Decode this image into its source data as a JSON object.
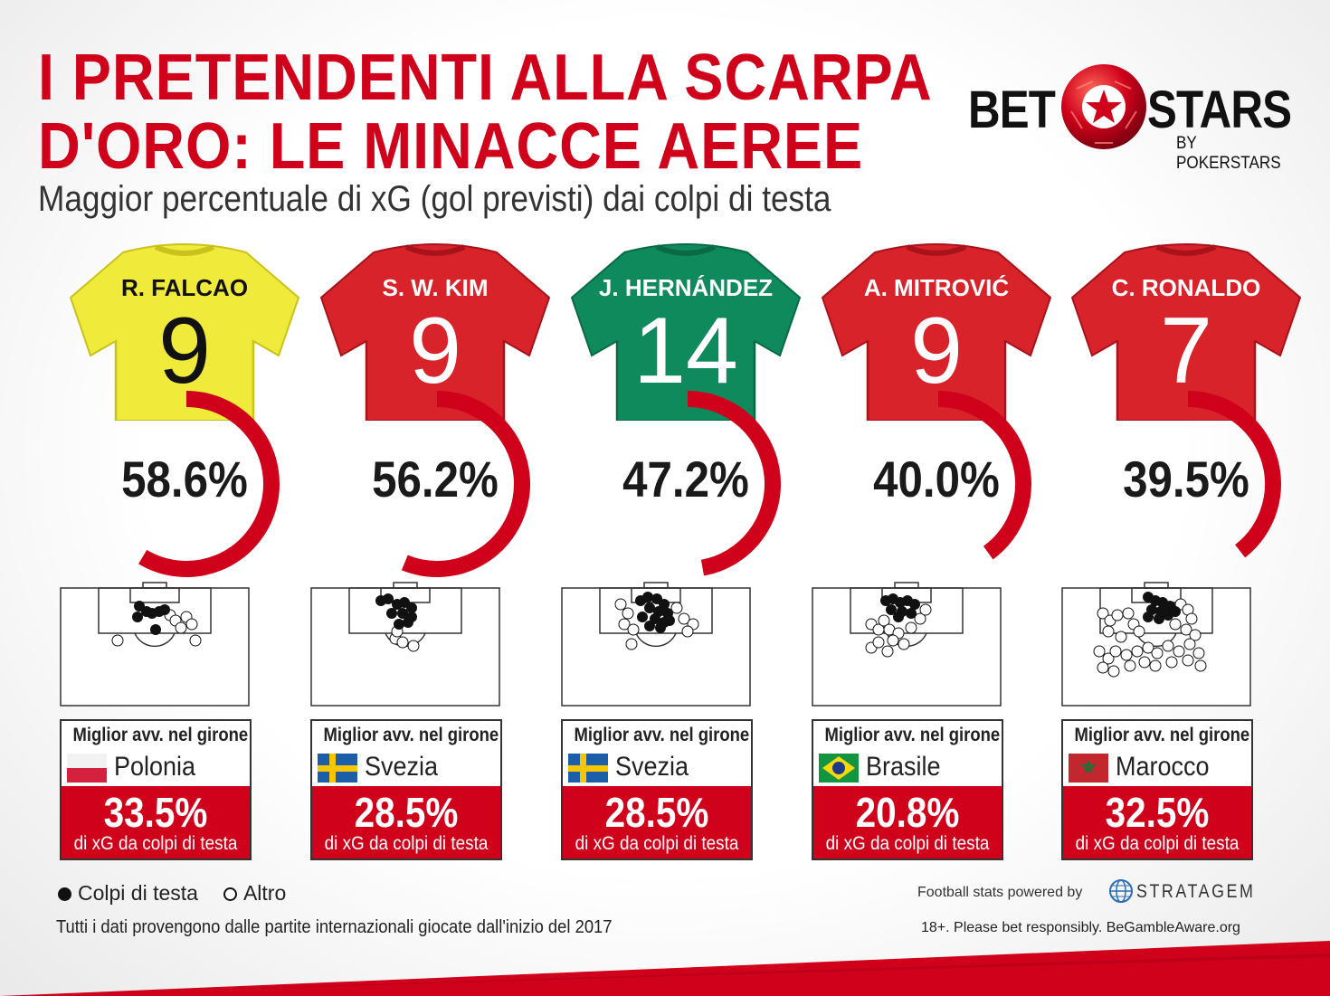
{
  "title_line1": "I PRETENDENTI ALLA SCARPA",
  "title_line2": "D'ORO: LE MINACCE AEREE",
  "subtitle": "Maggior percentuale di xG (gol previsti) dai colpi di testa",
  "logo": {
    "left": "BET",
    "right": "STARS",
    "sub": "BY POKERSTARS"
  },
  "colors": {
    "accent": "#d0021b",
    "header_dot": "#111111",
    "other_dot": "#ffffff"
  },
  "card_header": "Miglior avv. nel girone",
  "card_caption": "di xG da colpi di testa",
  "chart_data": {
    "type": "pie",
    "title": "Maggior percentuale di xG (gol previsti) dai colpi di testa",
    "unit": "%",
    "players": [
      {
        "name": "R. FALCAO",
        "number": "9",
        "shirt": "#f0ea3a",
        "text": "#111111",
        "xg_header_pct": 58.6,
        "xg_label": "58.6%",
        "opponent": "Polonia",
        "flag": "poland",
        "opp_pct": 33.5,
        "opp_label": "33.5%"
      },
      {
        "name": "S. W. KIM",
        "number": "9",
        "shirt": "#d8232a",
        "text": "#ffffff",
        "xg_header_pct": 56.2,
        "xg_label": "56.2%",
        "opponent": "Svezia",
        "flag": "sweden",
        "opp_pct": 28.5,
        "opp_label": "28.5%"
      },
      {
        "name": "J. HERNÁNDEZ",
        "number": "14",
        "shirt": "#0f8a5c",
        "text": "#ffffff",
        "xg_header_pct": 47.2,
        "xg_label": "47.2%",
        "opponent": "Svezia",
        "flag": "sweden",
        "opp_pct": 28.5,
        "opp_label": "28.5%"
      },
      {
        "name": "A. MITROVIĆ",
        "number": "9",
        "shirt": "#d8232a",
        "text": "#ffffff",
        "xg_header_pct": 40.0,
        "xg_label": "40.0%",
        "opponent": "Brasile",
        "flag": "brazil",
        "opp_pct": 20.8,
        "opp_label": "20.8%"
      },
      {
        "name": "C. RONALDO",
        "number": "7",
        "shirt": "#d8232a",
        "text": "#ffffff",
        "xg_header_pct": 39.5,
        "xg_label": "39.5%",
        "opponent": "Marocco",
        "flag": "morocco",
        "opp_pct": 32.5,
        "opp_label": "32.5%"
      }
    ],
    "legend": [
      "Colpi di testa",
      "Altro"
    ]
  },
  "footnote": "Tutti i dati provengono dalle partite internazionali giocate dall'inizio del 2017",
  "powered_by": "Football stats powered by",
  "stratagem": "STRATAGEM",
  "responsible": "18+. Please bet responsibly. BeGambleAware.org"
}
